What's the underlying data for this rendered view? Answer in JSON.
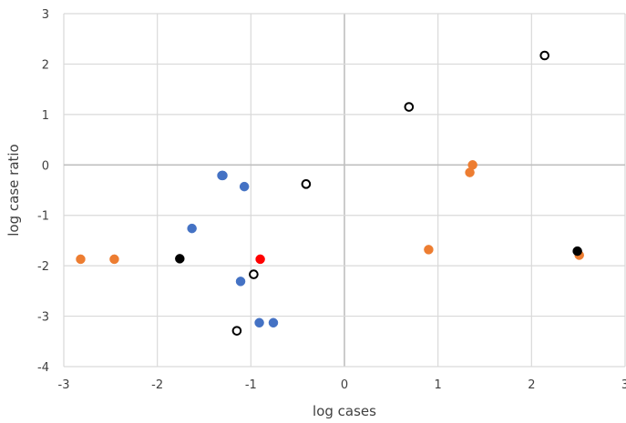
{
  "chart_data": {
    "type": "scatter",
    "title": "",
    "xlabel": "log cases",
    "ylabel": "log case ratio",
    "xlim": [
      -3,
      3
    ],
    "ylim": [
      -4,
      3
    ],
    "x_ticks": [
      -3,
      -2,
      -1,
      0,
      1,
      2,
      3
    ],
    "y_ticks": [
      -4,
      -3,
      -2,
      -1,
      0,
      1,
      2,
      3
    ],
    "grid": true,
    "legend": "none",
    "series": [
      {
        "color": "#4472C4",
        "marker": "filled-circle",
        "points": [
          {
            "x": -1.31,
            "y": -0.21
          },
          {
            "x": -1.3,
            "y": -0.21
          },
          {
            "x": -1.07,
            "y": -0.43
          },
          {
            "x": -1.63,
            "y": -1.26
          },
          {
            "x": -1.11,
            "y": -2.31
          },
          {
            "x": -0.91,
            "y": -3.13
          },
          {
            "x": -0.76,
            "y": -3.13
          }
        ]
      },
      {
        "color": "#ED7D31",
        "marker": "filled-circle",
        "points": [
          {
            "x": -2.82,
            "y": -1.87
          },
          {
            "x": -2.46,
            "y": -1.87
          },
          {
            "x": 0.9,
            "y": -1.68
          },
          {
            "x": 1.34,
            "y": -0.15
          },
          {
            "x": 1.37,
            "y": 0.0
          },
          {
            "x": 2.51,
            "y": -1.79
          }
        ]
      },
      {
        "color": "#000000",
        "marker": "hollow-circle",
        "points": [
          {
            "x": 2.14,
            "y": 2.17
          },
          {
            "x": 0.69,
            "y": 1.15
          },
          {
            "x": -0.41,
            "y": -0.38
          },
          {
            "x": -0.97,
            "y": -2.17
          },
          {
            "x": -1.15,
            "y": -3.29
          }
        ]
      },
      {
        "color": "#000000",
        "marker": "filled-circle",
        "points": [
          {
            "x": -1.76,
            "y": -1.86
          },
          {
            "x": 2.49,
            "y": -1.71
          }
        ]
      },
      {
        "color": "#FF0000",
        "marker": "filled-circle",
        "points": [
          {
            "x": -0.9,
            "y": -1.87
          }
        ]
      }
    ]
  },
  "colors": {
    "grid": "#D9D9D9",
    "zero_line": "#BFBFBF",
    "text": "#404040"
  }
}
